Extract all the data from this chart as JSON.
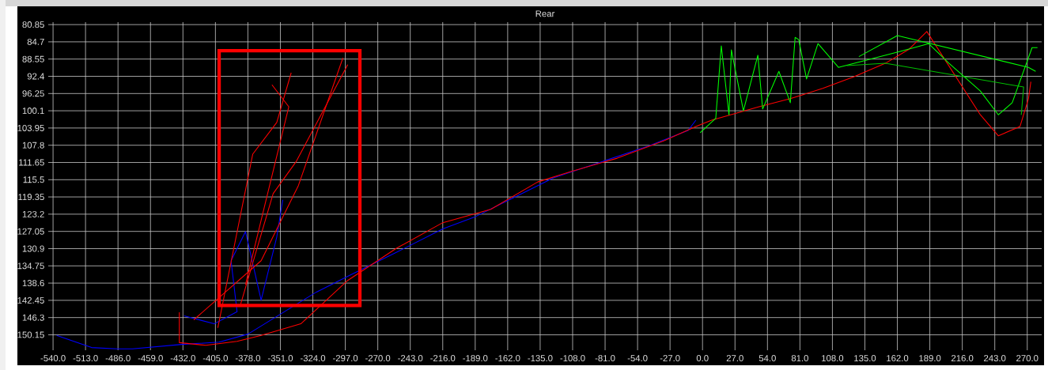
{
  "chart_data": {
    "type": "line",
    "title": "Rear",
    "grid": true,
    "xlim": [
      -544,
      282
    ],
    "ylim": [
      153.6,
      80.3
    ],
    "xticks": [
      {
        "value": -540,
        "label": "-540.0"
      },
      {
        "value": -513,
        "label": "-513.0"
      },
      {
        "value": -486,
        "label": "-486.0"
      },
      {
        "value": -459,
        "label": "-459.0"
      },
      {
        "value": -432,
        "label": "-432.0"
      },
      {
        "value": -405,
        "label": "-405.0"
      },
      {
        "value": -378,
        "label": "-378.0"
      },
      {
        "value": -351,
        "label": "-351.0"
      },
      {
        "value": -324,
        "label": "-324.0"
      },
      {
        "value": -297,
        "label": "-297.0"
      },
      {
        "value": -270,
        "label": "-270.0"
      },
      {
        "value": -243,
        "label": "-243.0"
      },
      {
        "value": -216,
        "label": "-216.0"
      },
      {
        "value": -189,
        "label": "-189.0"
      },
      {
        "value": -162,
        "label": "-162.0"
      },
      {
        "value": -135,
        "label": "-135.0"
      },
      {
        "value": -108,
        "label": "-108.0"
      },
      {
        "value": -81,
        "label": "-81.0"
      },
      {
        "value": -54,
        "label": "-54.0"
      },
      {
        "value": -27,
        "label": "-27.0"
      },
      {
        "value": 0,
        "label": "0.0"
      },
      {
        "value": 27,
        "label": "27.0"
      },
      {
        "value": 54,
        "label": "54.0"
      },
      {
        "value": 81,
        "label": "81.0"
      },
      {
        "value": 108,
        "label": "108.0"
      },
      {
        "value": 135,
        "label": "135.0"
      },
      {
        "value": 162,
        "label": "162.0"
      },
      {
        "value": 189,
        "label": "189.0"
      },
      {
        "value": 216,
        "label": "216.0"
      },
      {
        "value": 243,
        "label": "243.0"
      },
      {
        "value": 270,
        "label": "270.0"
      }
    ],
    "yticks": [
      80.85,
      84.7,
      88.55,
      92.4,
      96.25,
      100.1,
      103.95,
      107.8,
      111.65,
      115.5,
      119.35,
      123.2,
      127.05,
      130.9,
      134.75,
      138.6,
      142.45,
      146.3,
      150.15
    ],
    "series": [
      {
        "color": "#0000ff",
        "x": [
          -537,
          -508,
          -487,
          -474,
          -433,
          -402,
          -378,
          -321,
          -295,
          -255,
          -216,
          -190,
          -157,
          -124,
          -84,
          -45,
          -12,
          -5.5
        ],
        "values": [
          150.3,
          153.0,
          153.3,
          153.3,
          152.3,
          151.8,
          150.0,
          140.6,
          137.1,
          131.8,
          126.5,
          123.9,
          119.5,
          115.1,
          111.5,
          108.0,
          104.5,
          102.2
        ]
      },
      {
        "color": "#0000ff",
        "x": [
          -431,
          -406,
          -387,
          -392,
          -380,
          -367,
          -354,
          -349
        ],
        "values": [
          145.9,
          147.7,
          145.0,
          133.6,
          127.1,
          142.4,
          128.3,
          120.0
        ]
      },
      {
        "color": "#ff0000",
        "x": [
          -435,
          -435,
          -413,
          -387,
          -367,
          -334,
          -295,
          -255,
          -216,
          -176,
          -137,
          -111,
          -71,
          -32,
          -5.5,
          7.6,
          47,
          73,
          100,
          126,
          152,
          172,
          186.5,
          231,
          246,
          264,
          271,
          273
        ],
        "values": [
          145.1,
          151.9,
          152.5,
          151.6,
          150.3,
          147.7,
          138.0,
          130.9,
          125.1,
          122.1,
          116.0,
          113.8,
          110.7,
          106.8,
          103.6,
          102.2,
          99.2,
          97.4,
          95.1,
          92.5,
          89.5,
          86.3,
          82.4,
          101.0,
          105.7,
          103.6,
          97.4,
          93.6
        ]
      },
      {
        "color": "#ff0000",
        "x": [
          -423,
          -367,
          -336,
          -299
        ],
        "values": [
          146.8,
          133.6,
          116.8,
          88.3
        ]
      },
      {
        "color": "#ff0000",
        "x": [
          -384,
          -357,
          -338,
          -295
        ],
        "values": [
          143.3,
          118.6,
          111.5,
          89.8
        ]
      },
      {
        "color": "#ff0000",
        "x": [
          -403,
          -374,
          -354,
          -342
        ],
        "values": [
          148.6,
          109.8,
          102.7,
          91.6
        ]
      },
      {
        "color": "#ff0000",
        "x": [
          -380,
          -344,
          -358
        ],
        "values": [
          138.9,
          99.2,
          94.3
        ]
      },
      {
        "color": "#00ff00",
        "x": [
          -2,
          11,
          15.6,
          22,
          24,
          34,
          46,
          50,
          63.5,
          73,
          77,
          80,
          86.5,
          96,
          113,
          139,
          165,
          188,
          205,
          231,
          246,
          257.5,
          274,
          278.5
        ],
        "values": [
          105.0,
          101.8,
          85.6,
          101.0,
          86.5,
          100.1,
          87.7,
          99.7,
          91.3,
          98.3,
          83.7,
          84.2,
          93.0,
          85.1,
          90.4,
          88.6,
          86.8,
          85.1,
          89.5,
          95.7,
          101.0,
          98.3,
          86.0,
          86.0
        ]
      },
      {
        "color": "#00ff00",
        "x": [
          130,
          162,
          271,
          277
        ],
        "values": [
          88.0,
          83.3,
          90.4,
          91.3
        ]
      },
      {
        "color": "#00c000",
        "x": [
          120,
          152,
          267,
          265
        ],
        "values": [
          90.0,
          89.5,
          94.8,
          101.0
        ]
      }
    ]
  }
}
